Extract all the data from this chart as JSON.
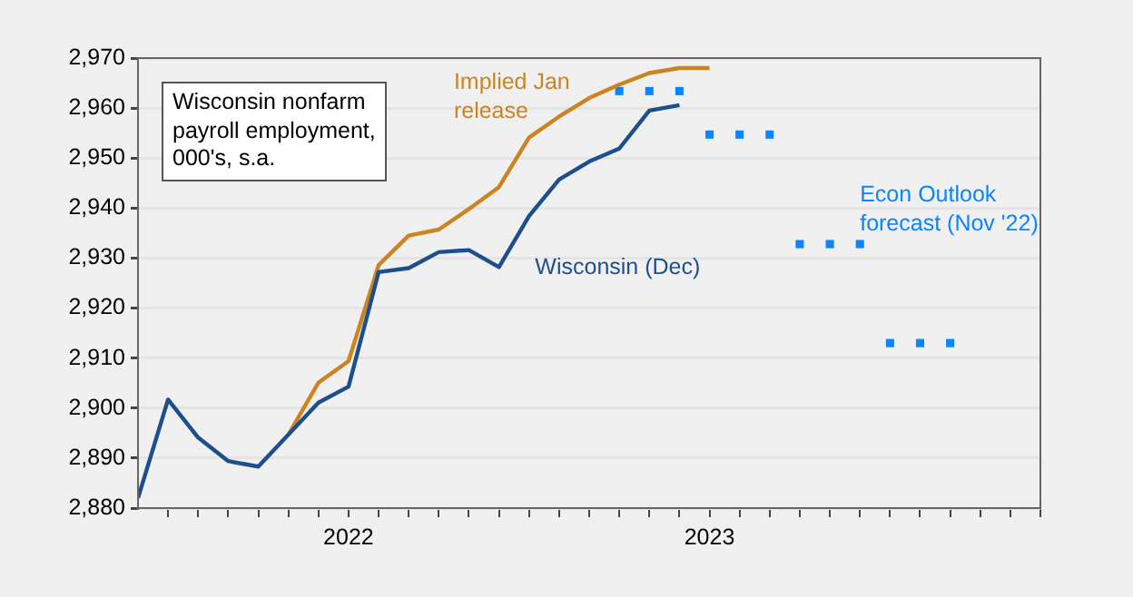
{
  "chart_data": {
    "type": "line",
    "title": "Wisconsin nonfarm payroll employment, 000's, s.a.",
    "series": [
      {
        "name": "Wisconsin (Dec)",
        "color": "#1c4f8c",
        "x": [
          "2021-06",
          "2021-07",
          "2021-08",
          "2021-09",
          "2021-10",
          "2021-11",
          "2021-12",
          "2022-01",
          "2022-02",
          "2022-03",
          "2022-04",
          "2022-05",
          "2022-06",
          "2022-07",
          "2022-08",
          "2022-09",
          "2022-10",
          "2022-11",
          "2022-12"
        ],
        "values": [
          2882,
          2901.7,
          2894.1,
          2889.4,
          2888.3,
          2894.7,
          2901.1,
          2904.3,
          2927.2,
          2928,
          2931.2,
          2931.6,
          2928.2,
          2938.4,
          2945.7,
          2949.3,
          2951.9,
          2959.5,
          2960.6
        ]
      },
      {
        "name": "Implied Jan release",
        "color": "#cc8420",
        "x": [
          "2021-11",
          "2021-12",
          "2022-01",
          "2022-02",
          "2022-03",
          "2022-04",
          "2022-05",
          "2022-06",
          "2022-07",
          "2022-08",
          "2022-09",
          "2022-10",
          "2022-11",
          "2022-12",
          "2023-01"
        ],
        "values": [
          2894.7,
          2905.1,
          2909.4,
          2928.6,
          2934.5,
          2935.7,
          2939.8,
          2944.2,
          2954.1,
          2958.3,
          2962,
          2964.7,
          2967,
          2968,
          2968
        ]
      },
      {
        "name": "Econ Outlook forecast (Nov '22)",
        "type": "scatter",
        "marker": "square",
        "color": "#0a84ff",
        "x": [
          "2022-10",
          "2022-11",
          "2022-12",
          "2023-01",
          "2023-02",
          "2023-03",
          "2023-04",
          "2023-05",
          "2023-06",
          "2023-07",
          "2023-08",
          "2023-09"
        ],
        "values": [
          2963.4,
          2963.4,
          2963.4,
          2954.7,
          2954.7,
          2954.7,
          2932.8,
          2932.8,
          2932.8,
          2913,
          2913,
          2913
        ]
      }
    ],
    "xlim": [
      "2021-06",
      "2023-12"
    ],
    "xticks": [
      {
        "value": "2021-07",
        "label": null
      },
      {
        "value": "2021-08",
        "label": null
      },
      {
        "value": "2021-09",
        "label": null
      },
      {
        "value": "2021-10",
        "label": null
      },
      {
        "value": "2021-11",
        "label": null
      },
      {
        "value": "2021-12",
        "label": null
      },
      {
        "value": "2022-01",
        "label": "2022"
      },
      {
        "value": "2022-02",
        "label": null
      },
      {
        "value": "2022-03",
        "label": null
      },
      {
        "value": "2022-04",
        "label": null
      },
      {
        "value": "2022-05",
        "label": null
      },
      {
        "value": "2022-06",
        "label": null
      },
      {
        "value": "2022-07",
        "label": null
      },
      {
        "value": "2022-08",
        "label": null
      },
      {
        "value": "2022-09",
        "label": null
      },
      {
        "value": "2022-10",
        "label": null
      },
      {
        "value": "2022-11",
        "label": null
      },
      {
        "value": "2022-12",
        "label": null
      },
      {
        "value": "2023-01",
        "label": "2023"
      },
      {
        "value": "2023-02",
        "label": null
      },
      {
        "value": "2023-03",
        "label": null
      },
      {
        "value": "2023-04",
        "label": null
      },
      {
        "value": "2023-05",
        "label": null
      },
      {
        "value": "2023-06",
        "label": null
      },
      {
        "value": "2023-07",
        "label": null
      },
      {
        "value": "2023-08",
        "label": null
      },
      {
        "value": "2023-09",
        "label": null
      },
      {
        "value": "2023-10",
        "label": null
      },
      {
        "value": "2023-11",
        "label": null
      },
      {
        "value": "2023-12",
        "label": null
      }
    ],
    "ylim": [
      2880,
      2970
    ],
    "yticks": [
      {
        "value": 2880,
        "label": "2,880"
      },
      {
        "value": 2890,
        "label": "2,890"
      },
      {
        "value": 2900,
        "label": "2,900"
      },
      {
        "value": 2910,
        "label": "2,910"
      },
      {
        "value": 2920,
        "label": "2,920"
      },
      {
        "value": 2930,
        "label": "2,930"
      },
      {
        "value": 2940,
        "label": "2,940"
      },
      {
        "value": 2950,
        "label": "2,950"
      },
      {
        "value": 2960,
        "label": "2,960"
      },
      {
        "value": 2970,
        "label": "2,970"
      }
    ],
    "grid": "y",
    "legend": false,
    "marker": "none",
    "line_style": "solid"
  }
}
